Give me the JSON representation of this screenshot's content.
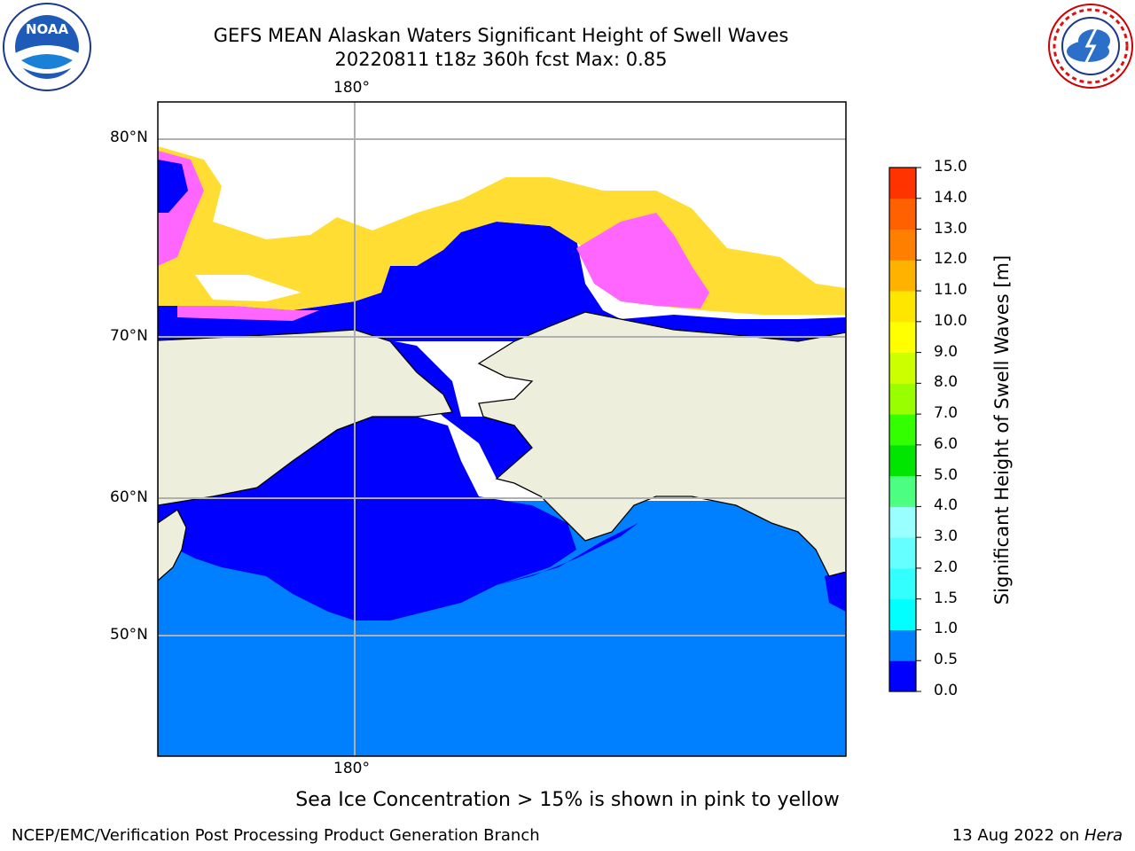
{
  "title_line1": "GEFS MEAN Alaskan Waters Significant Height of Swell Waves",
  "title_line2": "20220811 t18z 360h fcst   Max: 0.85",
  "lon_label": "180°",
  "lat_labels": [
    "80°N",
    "70°N",
    "60°N",
    "50°N"
  ],
  "colorbar": {
    "label": "Significant Height of Swell Waves [m]",
    "ticks": [
      "0.0",
      "0.5",
      "1.0",
      "1.5",
      "2.0",
      "3.0",
      "4.0",
      "5.0",
      "6.0",
      "7.0",
      "8.0",
      "9.0",
      "10.0",
      "11.0",
      "12.0",
      "13.0",
      "14.0",
      "15.0"
    ],
    "colors": [
      "#0000ff",
      "#0080ff",
      "#00ffff",
      "#33ffff",
      "#66ffff",
      "#99ffff",
      "#4dff80",
      "#00e600",
      "#33ff00",
      "#99ff00",
      "#ccff00",
      "#ffff00",
      "#ffe600",
      "#ffb300",
      "#ff8000",
      "#ff6000",
      "#ff3300",
      "#ff0000"
    ]
  },
  "colors": {
    "land": "#eeeedd",
    "deep_water": "#0000ff",
    "swell_water": "#0080ff",
    "ice_pink": "#ff66ff",
    "ice_yellow": "#ffdd33",
    "grid": "#b0b0b0"
  },
  "logos": {
    "noaa": "NOAA",
    "nws": "NATIONAL WEATHER SERVICE"
  },
  "note": "Sea Ice Concentration > 15% is shown in pink to yellow",
  "footer_left": "NCEP/EMC/Verification Post Processing Product Generation Branch",
  "footer_date": "13 Aug 2022 on ",
  "footer_machine": "Hera"
}
